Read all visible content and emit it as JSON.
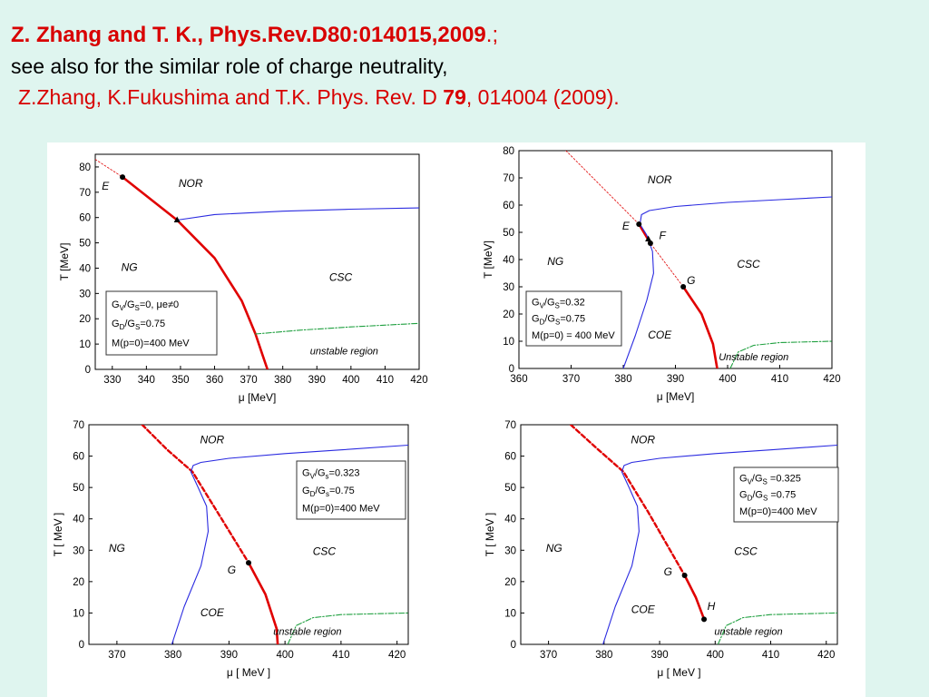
{
  "header": {
    "line1_bold": "Z. Zhang and T. K., Phys.Rev.D80:014015,2009",
    "line1_tail": ".;",
    "line2": "see also for the similar role of charge neutrality,",
    "line3_pre": "Z.Zhang,   K.Fukushima and T.K. Phys. Rev. D ",
    "line3_vol": "79",
    "line3_post": ", 014004 (2009)."
  },
  "colors": {
    "background": "#dff5ef",
    "title": "#d80000",
    "red_line": "#e00000",
    "blue_line": "#2a2ae0",
    "green_line": "#20a040"
  },
  "chart_data": [
    {
      "type": "line",
      "xlabel": "μ [MeV]",
      "ylabel": "T [MeV]",
      "xlim": [
        325,
        420
      ],
      "ylim": [
        0,
        85
      ],
      "xticks": [
        330,
        340,
        350,
        360,
        370,
        380,
        390,
        400,
        410,
        420
      ],
      "yticks": [
        0,
        10,
        20,
        30,
        40,
        50,
        60,
        70,
        80
      ],
      "legend_lines": [
        "GV/GS=0,  μe≠0",
        "GD/GS=0.75",
        "M(p=0)=400 MeV"
      ],
      "regions": [
        {
          "label": "NOR",
          "x": 353,
          "y": 72
        },
        {
          "label": "NG",
          "x": 335,
          "y": 39
        },
        {
          "label": "CSC",
          "x": 397,
          "y": 35
        },
        {
          "label": "unstable region",
          "x": 398,
          "y": 6
        }
      ],
      "points": [
        {
          "label": "E",
          "x": 333,
          "y": 76,
          "marker": "circle",
          "lx": 328,
          "ly": 71
        },
        {
          "label": "",
          "x": 349,
          "y": 59,
          "marker": "triangle"
        }
      ],
      "series": [
        {
          "style": "red-dashed",
          "x": [
            325,
            333
          ],
          "y": [
            83,
            76
          ]
        },
        {
          "style": "red-solid",
          "x": [
            333,
            349,
            360,
            368,
            372,
            374,
            375.5
          ],
          "y": [
            76,
            59,
            44,
            27,
            14,
            6,
            0
          ]
        },
        {
          "style": "blue-solid",
          "x": [
            349,
            360,
            380,
            400,
            420
          ],
          "y": [
            59,
            61.2,
            62.5,
            63.3,
            63.8
          ]
        },
        {
          "style": "green-dashdot",
          "x": [
            372,
            385,
            400,
            420
          ],
          "y": [
            14,
            15.5,
            16.8,
            18.2
          ]
        }
      ]
    },
    {
      "type": "line",
      "xlabel": "μ [MeV]",
      "ylabel": "T [MeV]",
      "xlim": [
        360,
        420
      ],
      "ylim": [
        0,
        80
      ],
      "xticks": [
        360,
        370,
        380,
        390,
        400,
        410,
        420
      ],
      "yticks": [
        0,
        10,
        20,
        30,
        40,
        50,
        60,
        70,
        80
      ],
      "legend_lines": [
        "GV/GS=0.32",
        "GD/GS=0.75",
        "M(p=0) = 400 MeV"
      ],
      "regions": [
        {
          "label": "NOR",
          "x": 387,
          "y": 68
        },
        {
          "label": "NG",
          "x": 367,
          "y": 38
        },
        {
          "label": "CSC",
          "x": 404,
          "y": 37
        },
        {
          "label": "COE",
          "x": 387,
          "y": 11
        },
        {
          "label": "Unstable  region",
          "x": 405,
          "y": 3
        }
      ],
      "points": [
        {
          "label": "E",
          "x": 383,
          "y": 53,
          "marker": "circle",
          "lx": 380.5,
          "ly": 51
        },
        {
          "label": "",
          "x": 384.8,
          "y": 47.5,
          "marker": "triangle"
        },
        {
          "label": "F",
          "x": 385.2,
          "y": 46,
          "marker": "circle",
          "lx": 387.5,
          "ly": 47.5
        },
        {
          "label": "G",
          "x": 391.5,
          "y": 30,
          "marker": "circle",
          "lx": 393,
          "ly": 31
        }
      ],
      "series": [
        {
          "style": "red-dashed",
          "x": [
            369,
            383,
            385.2,
            391.5
          ],
          "y": [
            80,
            53,
            46,
            30
          ]
        },
        {
          "style": "red-solid",
          "x": [
            383,
            385.2
          ],
          "y": [
            53,
            46
          ]
        },
        {
          "style": "red-solid",
          "x": [
            391.5,
            395,
            397.2,
            398
          ],
          "y": [
            30,
            20,
            9,
            0
          ]
        },
        {
          "style": "blue-solid",
          "x": [
            380,
            382.3,
            384.5,
            385.8,
            385.6,
            384.5,
            383.2,
            383.5,
            385,
            390,
            400,
            410,
            420
          ],
          "y": [
            0,
            12,
            25,
            35,
            43,
            49,
            53,
            56.5,
            58,
            59.5,
            61,
            62,
            63
          ]
        },
        {
          "style": "green-dashdot",
          "x": [
            400.5,
            402,
            405,
            410,
            420
          ],
          "y": [
            0,
            6,
            8.5,
            9.5,
            10
          ]
        }
      ]
    },
    {
      "type": "line",
      "xlabel": "μ [ MeV ]",
      "ylabel": "T [ MeV ]",
      "xlim": [
        365,
        422
      ],
      "ylim": [
        0,
        70
      ],
      "xticks": [
        370,
        380,
        390,
        400,
        410,
        420
      ],
      "yticks": [
        0,
        10,
        20,
        30,
        40,
        50,
        60,
        70
      ],
      "legend_lines": [
        "GV/Gs=0.323",
        "GD/Gs=0.75",
        "M(p=0)=400 MeV"
      ],
      "regions": [
        {
          "label": "NOR",
          "x": 387,
          "y": 64
        },
        {
          "label": "NG",
          "x": 370,
          "y": 29.5
        },
        {
          "label": "CSC",
          "x": 407,
          "y": 28.5
        },
        {
          "label": "COE",
          "x": 387,
          "y": 9
        },
        {
          "label": "unstable region",
          "x": 404,
          "y": 3
        }
      ],
      "points": [
        {
          "label": "G",
          "x": 393.5,
          "y": 26,
          "marker": "circle",
          "lx": 390.5,
          "ly": 22.5
        }
      ],
      "series": [
        {
          "style": "red-dashed",
          "x": [
            374.5,
            379,
            383.5,
            388,
            393.5
          ],
          "y": [
            70,
            62,
            55,
            42,
            26
          ]
        },
        {
          "style": "red-solid",
          "x": [
            393.5,
            396.5,
            398.5,
            398.7
          ],
          "y": [
            26,
            16,
            5,
            0
          ]
        },
        {
          "style": "blue-solid",
          "x": [
            379.8,
            382,
            385,
            386.3,
            386,
            384.5,
            383.2,
            383.6,
            385,
            390,
            400,
            410,
            422
          ],
          "y": [
            0,
            12,
            25,
            36,
            44,
            50,
            55,
            57,
            58,
            59.3,
            60.8,
            62,
            63.5
          ]
        },
        {
          "style": "green-dashdot",
          "x": [
            400.5,
            402,
            405,
            410,
            422
          ],
          "y": [
            0,
            6,
            8.5,
            9.5,
            10
          ]
        }
      ]
    },
    {
      "type": "line",
      "xlabel": "μ [ MeV ]",
      "ylabel": "T [ MeV ]",
      "xlim": [
        365,
        422
      ],
      "ylim": [
        0,
        70
      ],
      "xticks": [
        370,
        380,
        390,
        400,
        410,
        420
      ],
      "yticks": [
        0,
        10,
        20,
        30,
        40,
        50,
        60,
        70
      ],
      "legend_lines": [
        "GV/GS =0.325",
        "GD/GS =0.75",
        "M(p=0)=400 MeV"
      ],
      "regions": [
        {
          "label": "NOR",
          "x": 387,
          "y": 64
        },
        {
          "label": "NG",
          "x": 371,
          "y": 29.5
        },
        {
          "label": "CSC",
          "x": 405.5,
          "y": 28.5
        },
        {
          "label": "COE",
          "x": 387,
          "y": 10
        },
        {
          "label": "unstable region",
          "x": 406,
          "y": 3
        }
      ],
      "points": [
        {
          "label": "G",
          "x": 394.5,
          "y": 22,
          "marker": "circle",
          "lx": 391.5,
          "ly": 22
        },
        {
          "label": "H",
          "x": 398,
          "y": 8,
          "marker": "circle",
          "lx": 399.3,
          "ly": 11
        }
      ],
      "series": [
        {
          "style": "red-dashed",
          "x": [
            374,
            379,
            383.5,
            388,
            394.5
          ],
          "y": [
            70,
            62,
            55,
            42,
            22
          ]
        },
        {
          "style": "red-solid",
          "x": [
            394.5,
            396.5,
            398
          ],
          "y": [
            22,
            15,
            8
          ]
        },
        {
          "style": "blue-solid",
          "x": [
            379.8,
            382,
            385,
            386.3,
            386,
            384.5,
            383.2,
            383.6,
            385,
            390,
            400,
            410,
            422
          ],
          "y": [
            0,
            12,
            25,
            36,
            44,
            50,
            55,
            57,
            58,
            59.3,
            60.8,
            62,
            63.5
          ]
        },
        {
          "style": "green-dashdot",
          "x": [
            400.5,
            402,
            405,
            410,
            422
          ],
          "y": [
            0,
            6,
            8.5,
            9.5,
            10
          ]
        }
      ]
    }
  ]
}
